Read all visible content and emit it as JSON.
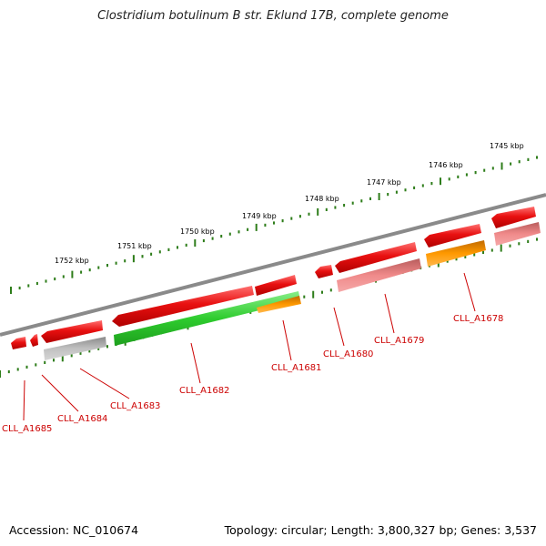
{
  "title": "Clostridium botulinum B str. Eklund 17B, complete genome",
  "footer": {
    "accession": "Accession: NC_010674",
    "summary": "Topology: circular; Length: 3,800,327 bp; Genes: 3,537"
  },
  "colors": {
    "backbone": "#808080",
    "tick": "#2e7d1a",
    "red": "#e01010",
    "pink": "#f08a8a",
    "gray": "#b4b4b4",
    "green": "#33cc33",
    "orange": "#ff9900",
    "label": "#cc0000"
  },
  "kbp_labels": [
    "1752 kbp",
    "1751 kbp",
    "1750 kbp",
    "1749 kbp",
    "1748 kbp",
    "1747 kbp",
    "1746 kbp",
    "1745 kbp"
  ],
  "gene_labels": [
    "CLL_A1685",
    "CLL_A1684",
    "CLL_A1683",
    "CLL_A1682",
    "CLL_A1681",
    "CLL_A1680",
    "CLL_A1679",
    "CLL_A1678"
  ]
}
